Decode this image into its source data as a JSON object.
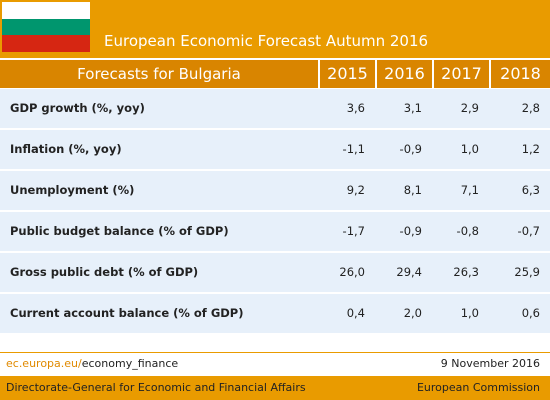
{
  "header": {
    "title": "European Economic Forecast Autumn 2016"
  },
  "table": {
    "title": "Forecasts for Bulgaria",
    "columns": [
      "2015",
      "2016",
      "2017",
      "2018"
    ],
    "rows": [
      [
        "GDP growth (%, yoy)",
        "3,6",
        "3,1",
        "2,9",
        "2,8"
      ],
      [
        "Inflation (%, yoy)",
        "-1,1",
        "-0,9",
        "1,0",
        "1,2"
      ],
      [
        "Unemployment (%)",
        "9,2",
        "8,1",
        "7,1",
        "6,3"
      ],
      [
        "Public budget balance (% of GDP)",
        "-1,7",
        "-0,9",
        "-0,8",
        "-0,7"
      ],
      [
        "Gross public debt (% of GDP)",
        "26,0",
        "29,4",
        "26,3",
        "25,9"
      ],
      [
        "Current account balance (% of GDP)",
        "0,4",
        "2,0",
        "1,0",
        "0,6"
      ]
    ]
  },
  "footer": {
    "link_domain": "ec.europa.eu/",
    "link_path": "economy_finance",
    "date": "9 November 2016",
    "left": "Directorate-General for Economic and Financial Affairs",
    "right": "European Commission"
  }
}
